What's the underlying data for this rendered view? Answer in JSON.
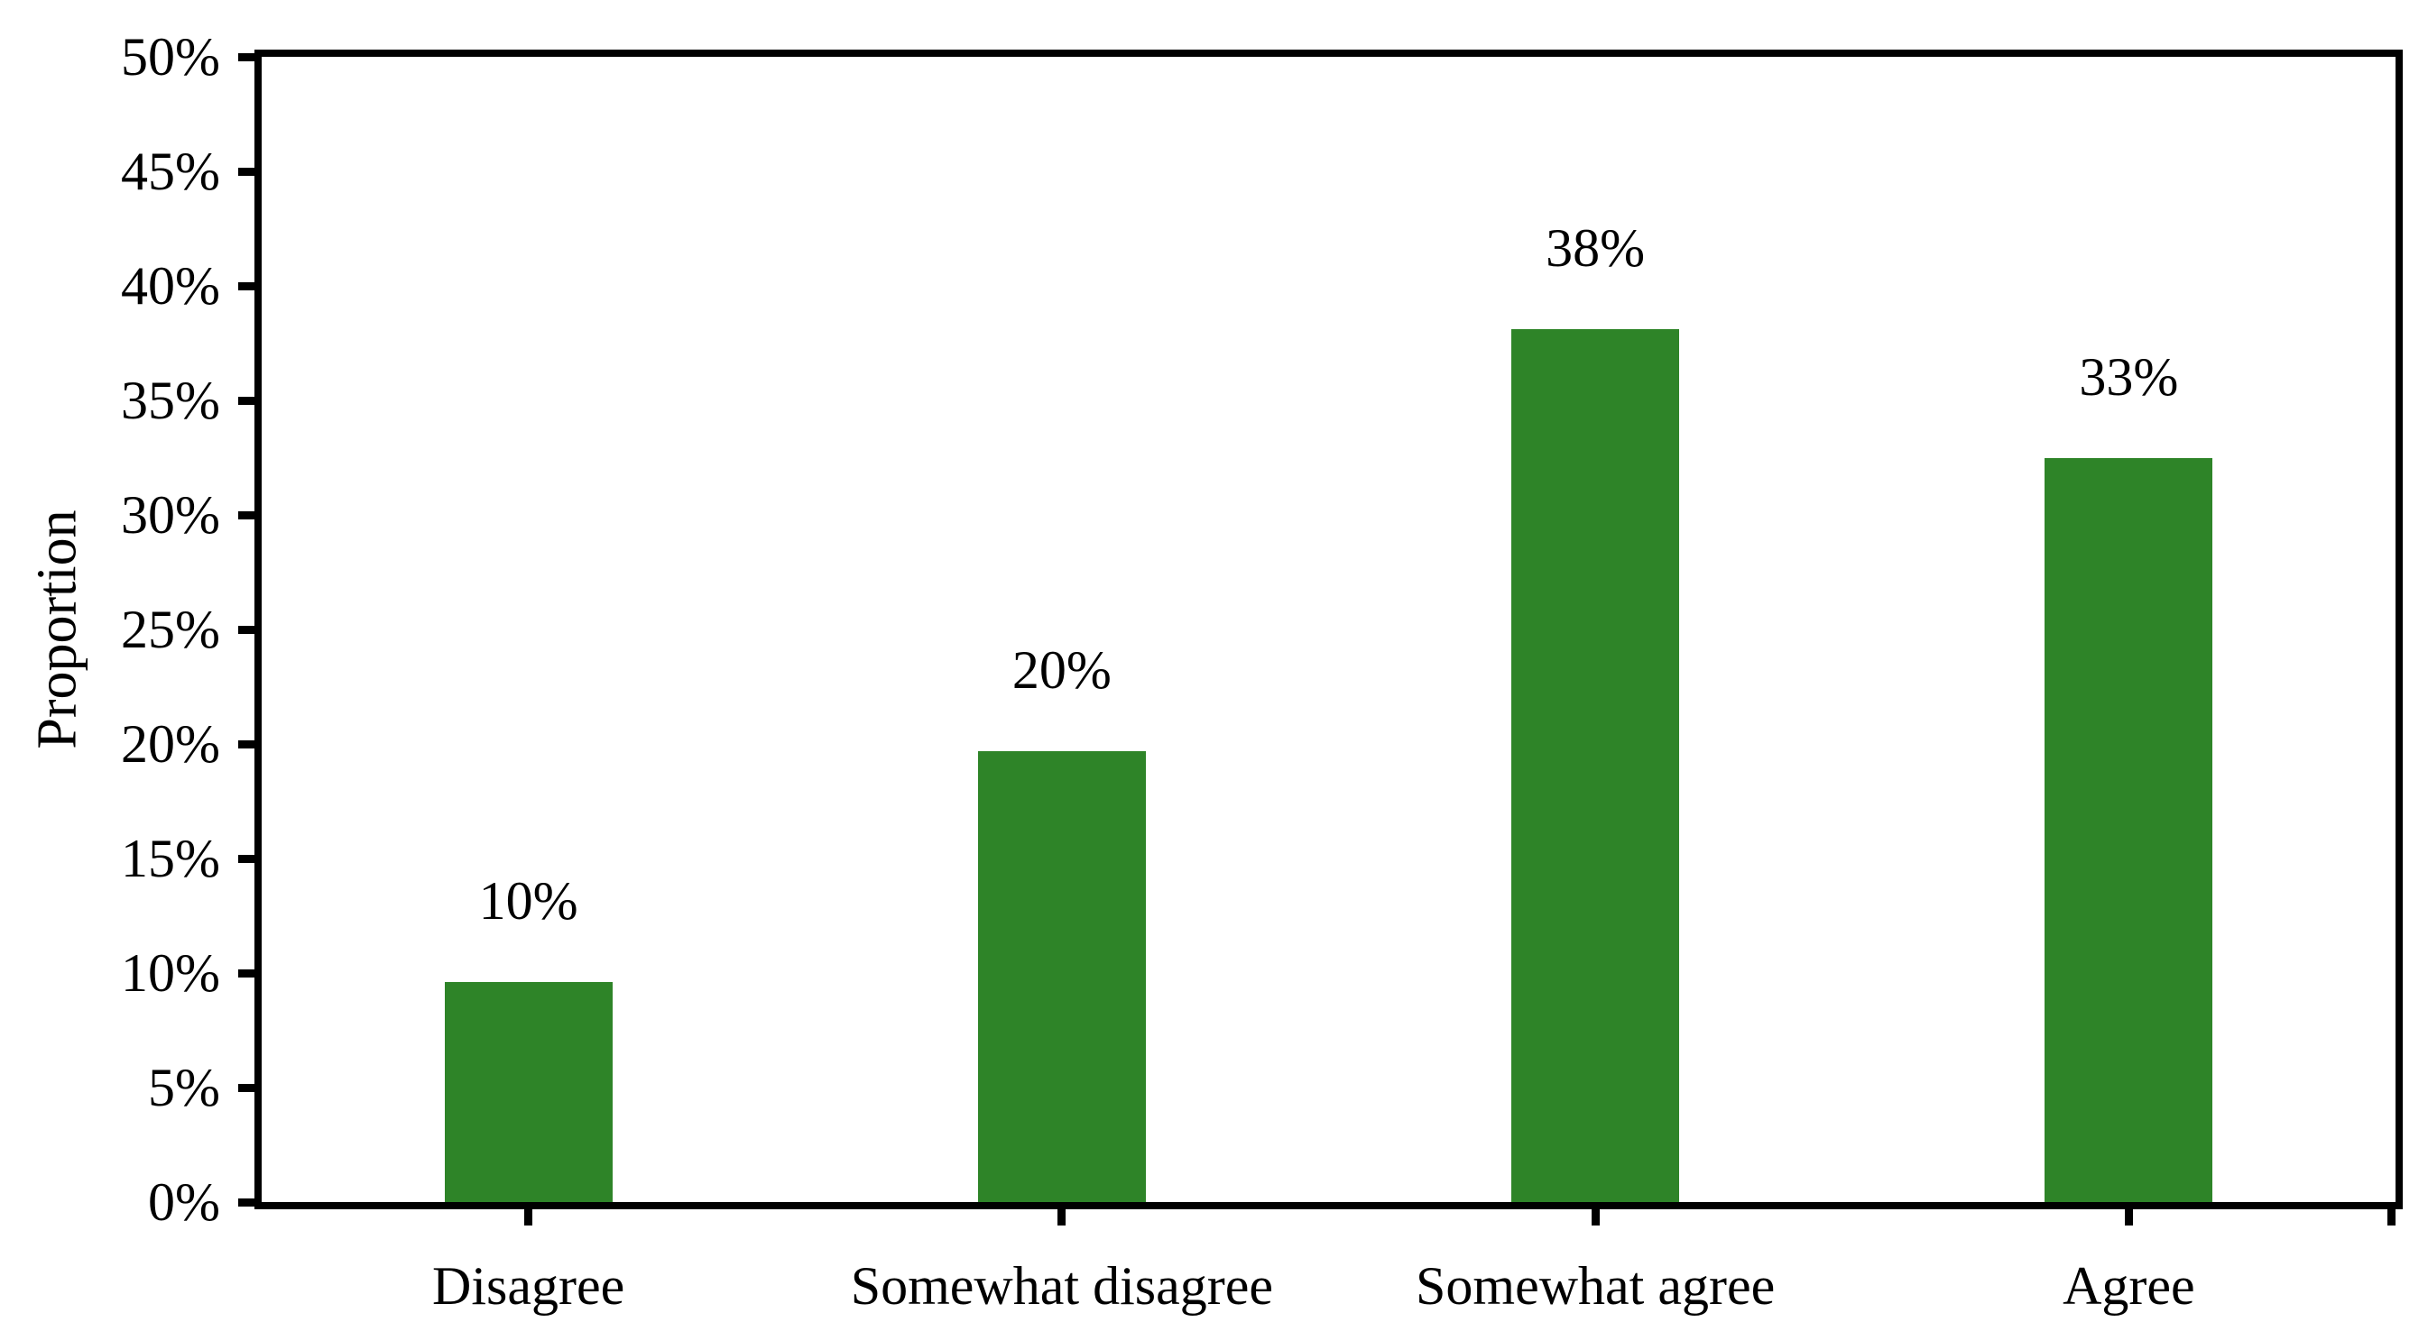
{
  "chart_data": {
    "type": "bar",
    "title": "",
    "categories": [
      "Disagree",
      "Somewhat disagree",
      "Somewhat agree",
      "Agree"
    ],
    "values": [
      9.6,
      19.7,
      38.1,
      32.5
    ],
    "bar_labels": [
      "10%",
      "20%",
      "38%",
      "33%"
    ],
    "series": [
      {
        "name": "Proportion",
        "values": [
          9.6,
          19.7,
          38.1,
          32.5
        ]
      }
    ],
    "xlabel": "",
    "ylabel": "Proportion",
    "ylim": [
      0,
      50
    ],
    "y_ticks": [
      0,
      5,
      10,
      15,
      20,
      25,
      30,
      35,
      40,
      45,
      50
    ],
    "y_tick_labels": [
      "0%",
      "5%",
      "10%",
      "15%",
      "20%",
      "25%",
      "30%",
      "35%",
      "40%",
      "45%",
      "50%"
    ],
    "grid": false,
    "legend_position": "none",
    "bar_color": "#2e8428",
    "axis_color": "#000000",
    "background_color": "#ffffff",
    "frame": true
  }
}
